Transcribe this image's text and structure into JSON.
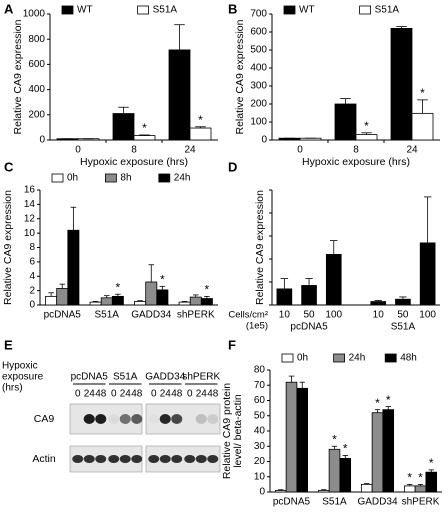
{
  "chart_data": [
    {
      "type": "bar",
      "panel": "A",
      "ylabel": [
        "Relative CA9 expression"
      ],
      "xlabel": "Hypoxic exposure (hrs)",
      "categories": [
        "0",
        "8",
        "24"
      ],
      "ylim": [
        0,
        1000
      ],
      "yticks": [
        0,
        200,
        400,
        600,
        800,
        1000
      ],
      "legend": "top",
      "series": [
        {
          "name": "WT",
          "color": "#000000",
          "values": [
            10,
            210,
            715
          ],
          "errors": [
            0,
            50,
            200
          ],
          "significance": [
            null,
            null,
            null
          ]
        },
        {
          "name": "S51A",
          "color": "#ffffff",
          "values": [
            10,
            35,
            95
          ],
          "errors": [
            0,
            5,
            10
          ],
          "significance": [
            null,
            "*",
            "*"
          ]
        }
      ]
    },
    {
      "type": "bar",
      "panel": "B",
      "ylabel": [
        "Relative CA9 expression"
      ],
      "xlabel": "Hypoxic exposure (hrs)",
      "categories": [
        "0",
        "8",
        "24"
      ],
      "ylim": [
        0,
        700
      ],
      "yticks": [
        0,
        100,
        200,
        300,
        400,
        500,
        600,
        700
      ],
      "legend": "top",
      "series": [
        {
          "name": "WT",
          "color": "#000000",
          "values": [
            10,
            200,
            620
          ],
          "errors": [
            0,
            30,
            10
          ],
          "significance": [
            null,
            null,
            null
          ]
        },
        {
          "name": "S51A",
          "color": "#ffffff",
          "values": [
            10,
            30,
            148
          ],
          "errors": [
            0,
            10,
            75
          ],
          "significance": [
            null,
            "*",
            "*"
          ]
        }
      ]
    },
    {
      "type": "bar",
      "panel": "C",
      "ylabel": [
        "Relative CA9 expression"
      ],
      "categories": [
        "pcDNA5",
        "S51A",
        "GADD34",
        "shPERK"
      ],
      "ylim": [
        0,
        16
      ],
      "yticks": [
        0,
        2,
        4,
        6,
        8,
        10,
        12,
        14,
        16
      ],
      "legend": "top",
      "series": [
        {
          "name": "0h",
          "color": "#ffffff",
          "values": [
            1.2,
            0.4,
            0.5,
            0.4
          ],
          "errors": [
            0.5,
            0.1,
            0.1,
            0.1
          ],
          "significance": [
            null,
            null,
            null,
            null
          ]
        },
        {
          "name": "8h",
          "color": "#8c8c8c",
          "values": [
            2.3,
            1.0,
            3.2,
            1.1
          ],
          "errors": [
            0.6,
            0.3,
            2.4,
            0.3
          ],
          "significance": [
            null,
            null,
            null,
            null
          ]
        },
        {
          "name": "24h",
          "color": "#000000",
          "values": [
            10.4,
            1.2,
            2.1,
            0.9
          ],
          "errors": [
            3.2,
            0.3,
            0.5,
            0.3
          ],
          "significance": [
            null,
            "*",
            "*",
            "*"
          ]
        }
      ]
    },
    {
      "type": "bar",
      "panel": "D",
      "ylabel": [
        "Relative CA9 expression"
      ],
      "row_label": [
        "Cells/cm²",
        "(1e5)"
      ],
      "categories": [
        "10",
        "50",
        "100",
        "10",
        "50",
        "100"
      ],
      "groups": [
        "pcDNA5",
        "S51A"
      ],
      "ylim": [
        0,
        5
      ],
      "yticks": [
        0,
        1,
        2,
        3,
        4,
        5
      ],
      "show_tick_labels": false,
      "legend": "none",
      "series": [
        {
          "color": "#000000",
          "values": [
            0.7,
            0.85,
            2.2,
            0.15,
            0.25,
            2.7
          ],
          "errors": [
            0.45,
            0.3,
            0.6,
            0.05,
            0.1,
            2.0
          ]
        }
      ]
    },
    {
      "type": "bar",
      "panel": "F",
      "ylabel": [
        "Relative CA9 protein",
        "level/ beta-actin"
      ],
      "categories": [
        "pcDNA5",
        "S51A",
        "GADD34",
        "shPERK"
      ],
      "ylim": [
        0,
        80
      ],
      "yticks": [
        0,
        10,
        20,
        30,
        40,
        50,
        60,
        70,
        80
      ],
      "legend": "top",
      "series": [
        {
          "name": "0h",
          "color": "#ffffff",
          "values": [
            1,
            1,
            5,
            4
          ],
          "errors": [
            0.5,
            0.5,
            0.5,
            1
          ],
          "significance": [
            null,
            null,
            null,
            "*"
          ]
        },
        {
          "name": "24h",
          "color": "#8c8c8c",
          "values": [
            72,
            28,
            52,
            4
          ],
          "errors": [
            4,
            2,
            2,
            1
          ],
          "significance": [
            null,
            "*",
            "*",
            "*"
          ]
        },
        {
          "name": "48h",
          "color": "#000000",
          "values": [
            68,
            22,
            54,
            13
          ],
          "errors": [
            4,
            2,
            2,
            1.5
          ],
          "significance": [
            null,
            "*",
            "*",
            "*"
          ]
        }
      ]
    }
  ],
  "blot": {
    "panel": "E",
    "condition_label": [
      "Hypoxic",
      "exposure",
      "(hrs)"
    ],
    "groups": [
      "pcDNA5",
      "S51A",
      "GADD34",
      "shPERK"
    ],
    "times": [
      "0",
      "24",
      "48"
    ],
    "rows": [
      "CA9",
      "Actin"
    ]
  }
}
